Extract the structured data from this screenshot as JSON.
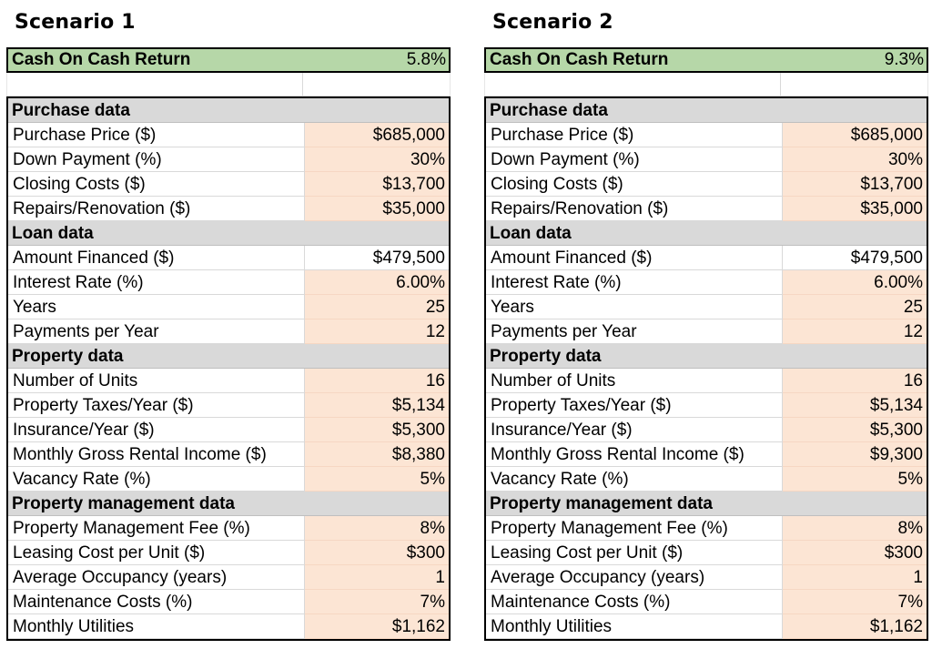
{
  "scenarios": [
    {
      "title": "Scenario 1",
      "coc_label": "Cash On Cash Return",
      "coc_value": "5.8%",
      "sections": [
        {
          "title": "Purchase data",
          "rows": [
            {
              "label": "Purchase Price ($)",
              "value": "$685,000",
              "input": true
            },
            {
              "label": "Down Payment (%)",
              "value": "30%",
              "input": true
            },
            {
              "label": "Closing Costs ($)",
              "value": "$13,700",
              "input": true
            },
            {
              "label": "Repairs/Renovation ($)",
              "value": "$35,000",
              "input": true
            }
          ]
        },
        {
          "title": "Loan data",
          "rows": [
            {
              "label": "Amount Financed ($)",
              "value": "$479,500",
              "input": false
            },
            {
              "label": "Interest Rate (%)",
              "value": "6.00%",
              "input": true
            },
            {
              "label": "Years",
              "value": "25",
              "input": true
            },
            {
              "label": "Payments per Year",
              "value": "12",
              "input": true
            }
          ]
        },
        {
          "title": "Property data",
          "rows": [
            {
              "label": "Number of Units",
              "value": "16",
              "input": true
            },
            {
              "label": "Property Taxes/Year ($)",
              "value": "$5,134",
              "input": true
            },
            {
              "label": "Insurance/Year ($)",
              "value": "$5,300",
              "input": true
            },
            {
              "label": "Monthly Gross Rental Income ($)",
              "value": "$8,380",
              "input": true
            },
            {
              "label": "Vacancy Rate (%)",
              "value": "5%",
              "input": true
            }
          ]
        },
        {
          "title": "Property management data",
          "rows": [
            {
              "label": "Property Management Fee (%)",
              "value": "8%",
              "input": true
            },
            {
              "label": "Leasing Cost per Unit ($)",
              "value": "$300",
              "input": true
            },
            {
              "label": "Average Occupancy (years)",
              "value": "1",
              "input": true
            },
            {
              "label": "Maintenance Costs (%)",
              "value": "7%",
              "input": true
            },
            {
              "label": "Monthly Utilities",
              "value": "$1,162",
              "input": true
            }
          ]
        }
      ]
    },
    {
      "title": "Scenario 2",
      "coc_label": "Cash On Cash Return",
      "coc_value": "9.3%",
      "sections": [
        {
          "title": "Purchase data",
          "rows": [
            {
              "label": "Purchase Price ($)",
              "value": "$685,000",
              "input": true
            },
            {
              "label": "Down Payment (%)",
              "value": "30%",
              "input": true
            },
            {
              "label": "Closing Costs ($)",
              "value": "$13,700",
              "input": true
            },
            {
              "label": "Repairs/Renovation ($)",
              "value": "$35,000",
              "input": true
            }
          ]
        },
        {
          "title": "Loan data",
          "rows": [
            {
              "label": "Amount Financed ($)",
              "value": "$479,500",
              "input": false
            },
            {
              "label": "Interest Rate (%)",
              "value": "6.00%",
              "input": true
            },
            {
              "label": "Years",
              "value": "25",
              "input": true
            },
            {
              "label": "Payments per Year",
              "value": "12",
              "input": true
            }
          ]
        },
        {
          "title": "Property data",
          "rows": [
            {
              "label": "Number of Units",
              "value": "16",
              "input": true
            },
            {
              "label": "Property Taxes/Year ($)",
              "value": "$5,134",
              "input": true
            },
            {
              "label": "Insurance/Year ($)",
              "value": "$5,300",
              "input": true
            },
            {
              "label": "Monthly Gross Rental Income ($)",
              "value": "$9,300",
              "input": true
            },
            {
              "label": "Vacancy Rate (%)",
              "value": "5%",
              "input": true
            }
          ]
        },
        {
          "title": "Property management data",
          "rows": [
            {
              "label": "Property Management Fee (%)",
              "value": "8%",
              "input": true
            },
            {
              "label": "Leasing Cost per Unit ($)",
              "value": "$300",
              "input": true
            },
            {
              "label": "Average Occupancy (years)",
              "value": "1",
              "input": true
            },
            {
              "label": "Maintenance Costs (%)",
              "value": "7%",
              "input": true
            },
            {
              "label": "Monthly Utilities",
              "value": "$1,162",
              "input": true
            }
          ]
        }
      ]
    }
  ],
  "colors": {
    "header_green": "#b6d7a8",
    "section_gray": "#d9d9d9",
    "input_peach": "#fce5d4"
  }
}
